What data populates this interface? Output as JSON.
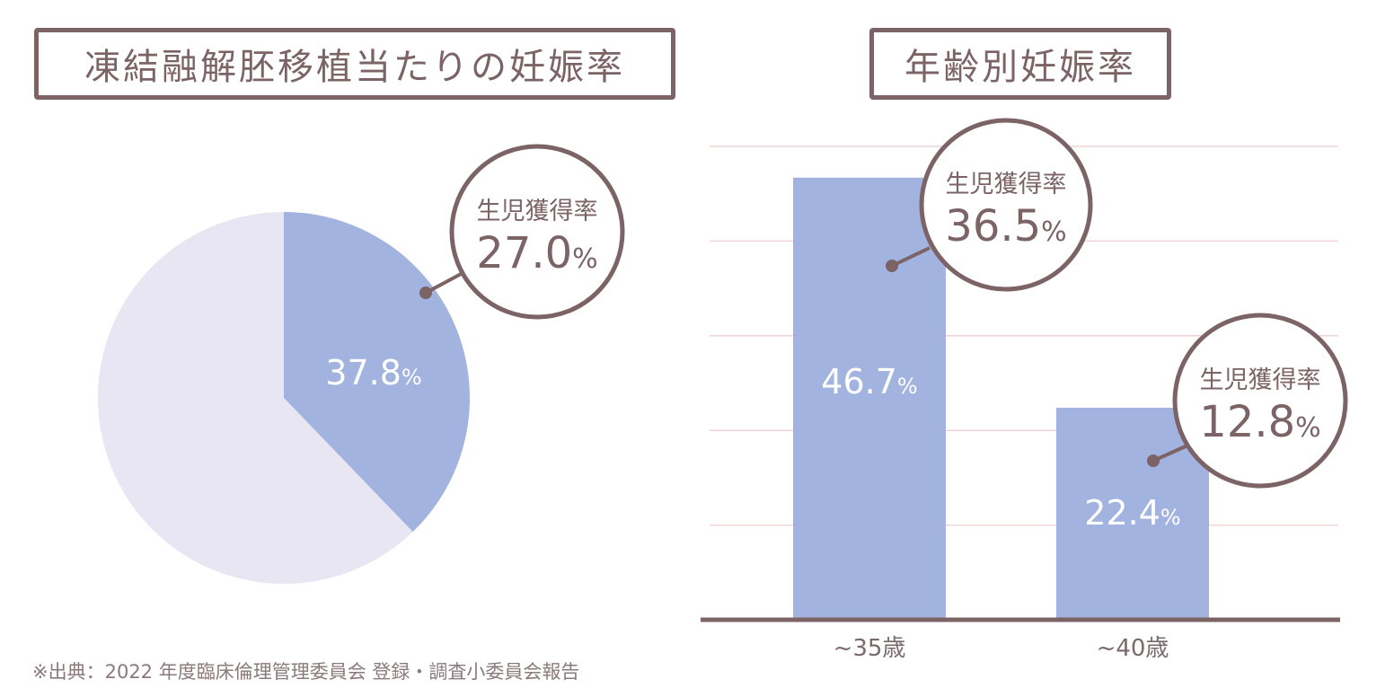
{
  "source_note": "※出典：2022 年度臨床倫理管理委員会 登録・調査小委員会報告",
  "colors": {
    "accent_blue": "#a1b3de",
    "pale_lavender": "#e8e6f3",
    "brown": "#7b6366",
    "grid_pink": "#efd3d6"
  },
  "chart_data": [
    {
      "type": "pie",
      "title": "凍結融解胚移植当たりの妊娠率",
      "slices": [
        {
          "value": 37.8,
          "label": "37.8",
          "unit": "%"
        },
        {
          "value": 62.2,
          "label": "",
          "unit": ""
        }
      ],
      "callout": {
        "label": "生児獲得率",
        "value": "27.0",
        "unit": "%"
      }
    },
    {
      "type": "bar",
      "title": "年齢別妊娠率",
      "categories": [
        "~35歳",
        "~40歳"
      ],
      "values": [
        46.7,
        22.4
      ],
      "value_labels": [
        "46.7",
        "22.4"
      ],
      "unit": "%",
      "ylim": [
        0,
        50
      ],
      "grid": true,
      "callouts": [
        {
          "label": "生児獲得率",
          "value": "36.5",
          "unit": "%"
        },
        {
          "label": "生児獲得率",
          "value": "12.8",
          "unit": "%"
        }
      ]
    }
  ]
}
